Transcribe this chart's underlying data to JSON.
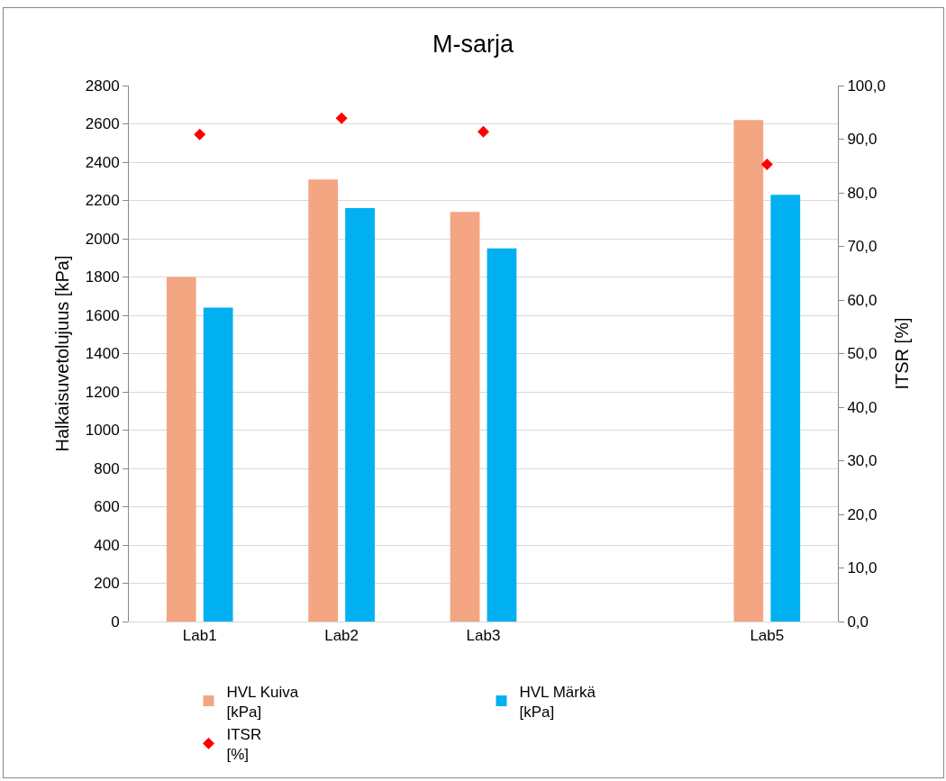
{
  "chart_data": {
    "type": "bar",
    "title": "M-sarja",
    "ylabel": "Halkaisuvetolujuus [kPa]",
    "y2label": "ITSR [%]",
    "categories": [
      "Lab1",
      "Lab2",
      "Lab3",
      null,
      "Lab5"
    ],
    "series": [
      {
        "name": "HVL Kuiva [kPa]",
        "color": "#f4a582",
        "values": [
          1800,
          2310,
          2140,
          null,
          2620
        ]
      },
      {
        "name": "HVL Märkä [kPa]",
        "color": "#00b0f0",
        "values": [
          1640,
          2160,
          1950,
          null,
          2230
        ]
      },
      {
        "name": "ITSR [%]",
        "type": "scatter",
        "axis": "y2",
        "color": "#ff0000",
        "values": [
          90.9,
          93.9,
          91.4,
          null,
          85.3
        ]
      }
    ],
    "ylim": [
      0,
      2800
    ],
    "yticks": [
      0,
      200,
      400,
      600,
      800,
      1000,
      1200,
      1400,
      1600,
      1800,
      2000,
      2200,
      2400,
      2600,
      2800
    ],
    "y2lim": [
      0,
      100
    ],
    "y2ticks": [
      {
        "value": 0,
        "label": "0,0"
      },
      {
        "value": 10,
        "label": "10,0"
      },
      {
        "value": 20,
        "label": "20,0"
      },
      {
        "value": 30,
        "label": "30,0"
      },
      {
        "value": 40,
        "label": "40,0"
      },
      {
        "value": 50,
        "label": "50,0"
      },
      {
        "value": 60,
        "label": "60,0"
      },
      {
        "value": 70,
        "label": "70,0"
      },
      {
        "value": 80,
        "label": "80,0"
      },
      {
        "value": 90,
        "label": "90,0"
      },
      {
        "value": 100,
        "label": "100,0"
      }
    ],
    "grid": "y",
    "legend": "bottom",
    "marker": "diamond"
  }
}
